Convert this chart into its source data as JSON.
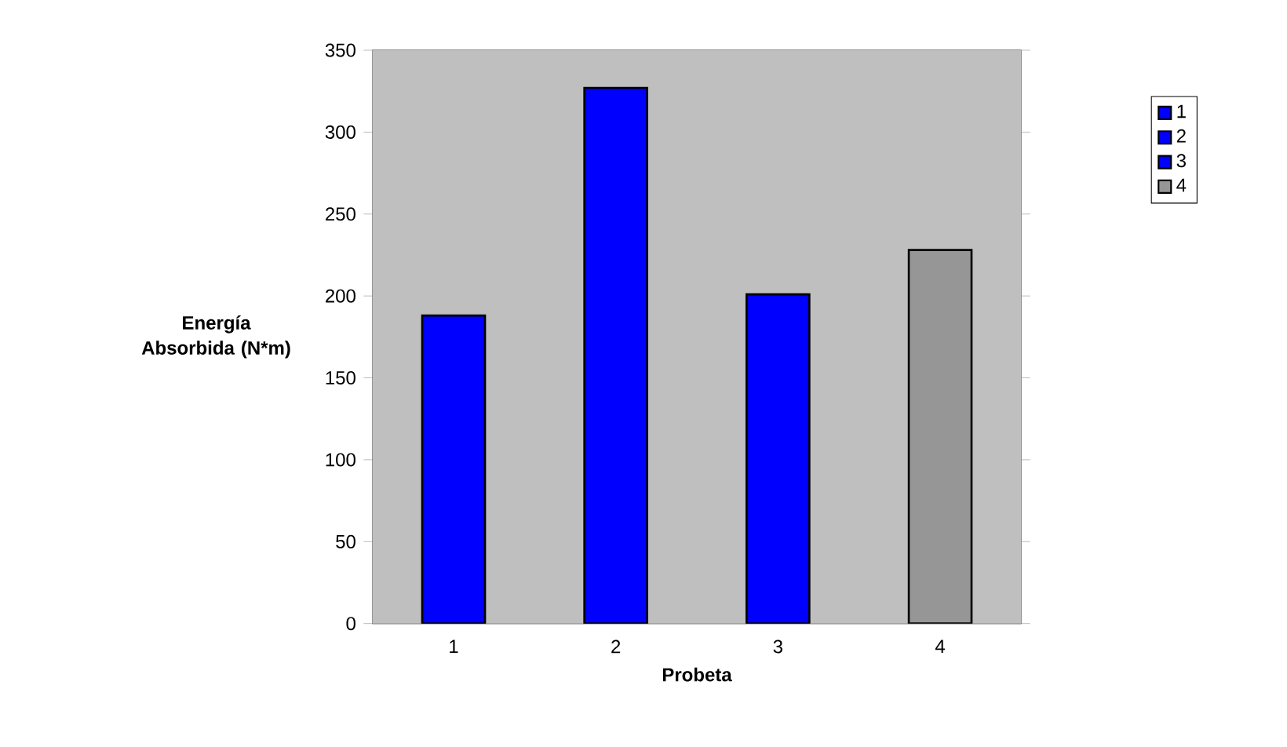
{
  "chart_data": {
    "type": "bar",
    "xlabel": "Probeta",
    "ylabel": "Energía Absorbida  (N*m)",
    "categories": [
      "1",
      "2",
      "3",
      "4"
    ],
    "series": [
      {
        "name": "1",
        "color": "#0000ff",
        "values": [
          188,
          null,
          null,
          null
        ]
      },
      {
        "name": "2",
        "color": "#0000ff",
        "values": [
          null,
          327,
          null,
          null
        ]
      },
      {
        "name": "3",
        "color": "#0000ff",
        "values": [
          null,
          null,
          201,
          null
        ]
      },
      {
        "name": "4",
        "color": "#969696",
        "values": [
          null,
          null,
          null,
          228
        ]
      }
    ],
    "ylim": [
      0,
      350
    ],
    "yticks": [
      0,
      50,
      100,
      150,
      200,
      250,
      300,
      350
    ],
    "grid": "y",
    "legend": "right"
  }
}
